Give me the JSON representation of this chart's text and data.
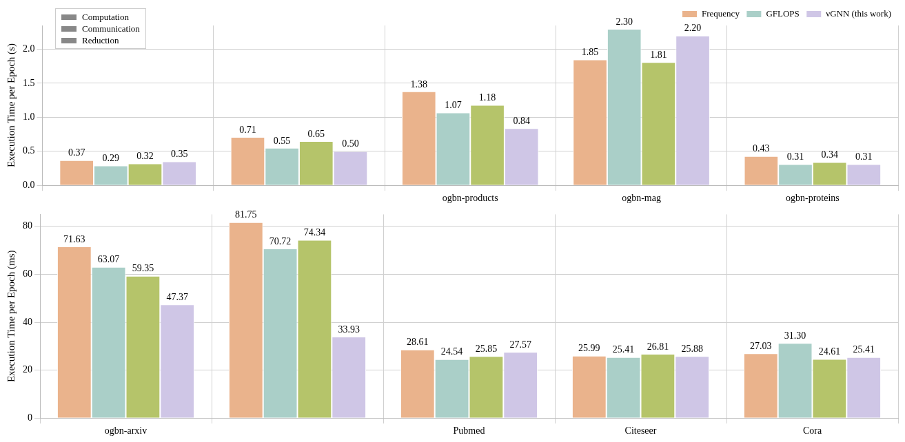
{
  "chart_data": [
    {
      "type": "bar",
      "categories": [
        null,
        null,
        "ogbn-products",
        "ogbn-mag",
        "ogbn-proteins"
      ],
      "ylabel": "Execution Time per Epoch (s)",
      "ylim": [
        0,
        2.35
      ],
      "yticks": [
        {
          "value": 0,
          "label": "0.0"
        },
        0.5,
        {
          "value": 1,
          "label": "1.0"
        },
        1.5,
        {
          "value": 2,
          "label": "2.0"
        }
      ],
      "grid": true,
      "legend": "top right",
      "annotations": [
        "Computation",
        "Communication",
        "Reduction"
      ],
      "series": [
        {
          "name": "Frequency",
          "color": "#eab38c",
          "values": [
            0.37,
            0.71,
            1.38,
            1.85,
            0.43
          ],
          "value_labels": [
            "0.37",
            "0.71",
            "1.38",
            "1.85",
            "0.43"
          ]
        },
        {
          "name": "GFLOPS",
          "color": "#aacfc8",
          "values": [
            0.29,
            0.55,
            1.07,
            2.3,
            0.31
          ],
          "value_labels": [
            "0.29",
            "0.55",
            "1.07",
            "2.30",
            "0.31"
          ]
        },
        {
          "color": "#b5c46a",
          "values": [
            0.32,
            0.65,
            1.18,
            1.81,
            0.34
          ],
          "value_labels": [
            "0.32",
            "0.65",
            "1.18",
            "1.81",
            "0.34"
          ]
        },
        {
          "name": "νGNN (this work)",
          "color": "#cfc6e6",
          "values": [
            0.35,
            0.5,
            0.84,
            2.2,
            0.31
          ],
          "value_labels": [
            "0.35",
            "0.50",
            "0.84",
            "2.20",
            "0.31"
          ]
        }
      ]
    },
    {
      "type": "bar",
      "categories": [
        "ogbn-arxiv",
        null,
        "Pubmed",
        "Citeseer",
        "Cora"
      ],
      "ylabel": "Execution Time per Epoch (ms)",
      "ylim": [
        0,
        85
      ],
      "yticks": [
        0,
        20,
        40,
        60,
        80
      ],
      "grid": true,
      "series": [
        {
          "color": "#eab38c",
          "values": [
            71.63,
            81.75,
            28.61,
            25.99,
            27.03
          ],
          "value_labels": [
            "71.63",
            "81.75",
            "28.61",
            "25.99",
            "27.03"
          ]
        },
        {
          "color": "#aacfc8",
          "values": [
            63.07,
            70.72,
            24.54,
            25.41,
            31.3
          ],
          "value_labels": [
            "63.07",
            "70.72",
            "24.54",
            "25.41",
            "31.30"
          ]
        },
        {
          "color": "#b5c46a",
          "values": [
            59.35,
            74.34,
            25.85,
            26.81,
            24.61
          ],
          "value_labels": [
            "59.35",
            "74.34",
            "25.85",
            "26.81",
            "24.61"
          ]
        },
        {
          "color": "#cfc6e6",
          "values": [
            47.37,
            33.93,
            27.57,
            25.88,
            25.41
          ],
          "value_labels": [
            "47.37",
            "33.93",
            "27.57",
            "25.88",
            "25.41"
          ]
        }
      ]
    }
  ]
}
